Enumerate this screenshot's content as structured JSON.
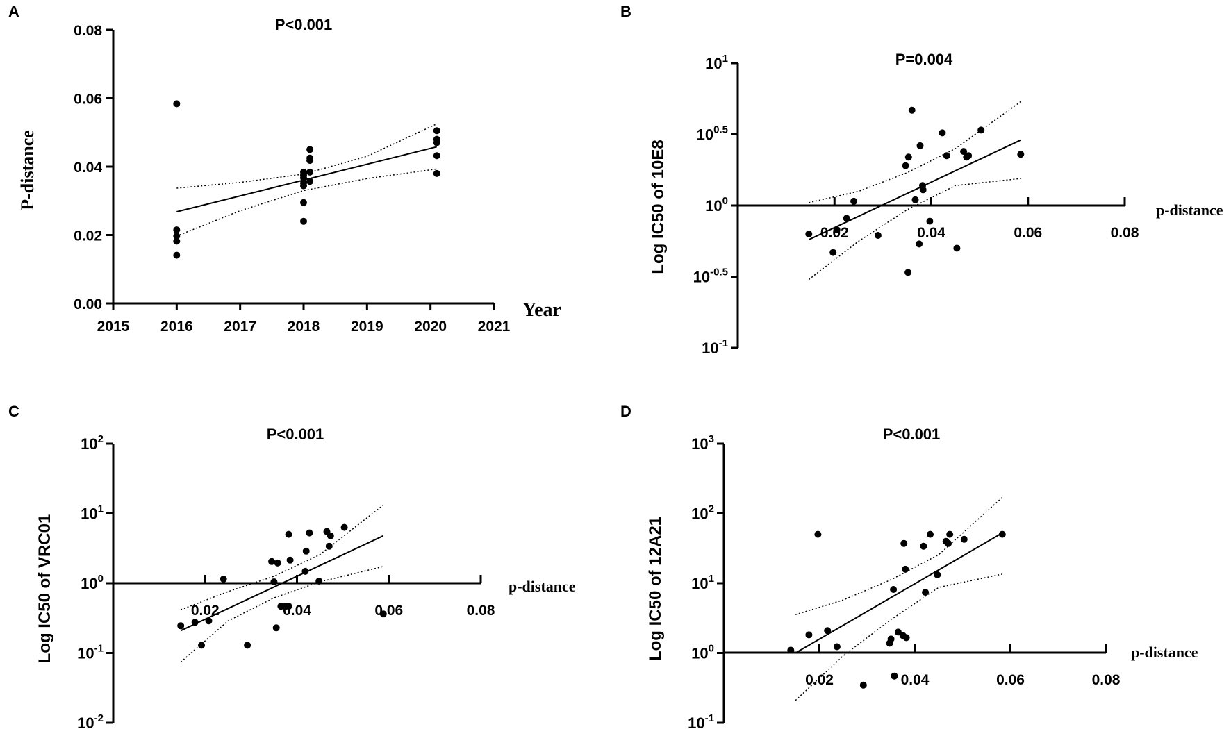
{
  "figure": {
    "panels": [
      "A",
      "B",
      "C",
      "D"
    ]
  },
  "chart_data": [
    {
      "panel": "A",
      "type": "scatter",
      "title": "P<0.001",
      "xlabel": "Year",
      "ylabel": "P-distance",
      "xscale": "linear",
      "yscale": "linear",
      "xlim": [
        2015,
        2021
      ],
      "ylim": [
        0.0,
        0.08
      ],
      "xticks": [
        2015,
        2016,
        2017,
        2018,
        2019,
        2020,
        2021
      ],
      "xtick_labels": [
        "2015",
        "2016",
        "2017",
        "2018",
        "2019",
        "2020",
        "2021"
      ],
      "yticks": [
        0.0,
        0.02,
        0.04,
        0.06,
        0.08
      ],
      "ytick_labels": [
        "0.00",
        "0.02",
        "0.04",
        "0.06",
        "0.08"
      ],
      "x": [
        2016,
        2016,
        2016,
        2016,
        2016,
        2018,
        2018,
        2018,
        2018,
        2018,
        2018,
        2018,
        2018.1,
        2018.1,
        2018.1,
        2018.1,
        2018.1,
        2020.1,
        2020.1,
        2020.1,
        2020.1,
        2020.1
      ],
      "y": [
        0.0584,
        0.0215,
        0.0197,
        0.0182,
        0.0141,
        0.0384,
        0.0375,
        0.0367,
        0.0352,
        0.0344,
        0.0295,
        0.024,
        0.045,
        0.0425,
        0.0418,
        0.0384,
        0.0357,
        0.0505,
        0.048,
        0.047,
        0.0432,
        0.038
      ],
      "fit": {
        "x": [
          2016,
          2020.1
        ],
        "y": [
          0.0268,
          0.0458
        ]
      },
      "ci_upper": {
        "x": [
          2016,
          2017,
          2018,
          2019,
          2020.1
        ],
        "y": [
          0.0337,
          0.0354,
          0.0378,
          0.043,
          0.0525
        ]
      },
      "ci_lower": {
        "x": [
          2016,
          2017,
          2018,
          2019,
          2020.1
        ],
        "y": [
          0.0197,
          0.0271,
          0.033,
          0.0365,
          0.0393
        ]
      }
    },
    {
      "panel": "B",
      "type": "scatter",
      "title": "P=0.004",
      "xlabel": "p-distance",
      "ylabel": "Log IC50 of 10E8",
      "xscale": "linear",
      "yscale": "log",
      "xlim": [
        0.0,
        0.08
      ],
      "ylim_exp": [
        -1,
        1
      ],
      "xticks": [
        0.02,
        0.04,
        0.06,
        0.08
      ],
      "xtick_labels": [
        "0.02",
        "0.04",
        "0.06",
        "0.08"
      ],
      "ytick_exps": [
        1,
        0.5,
        0,
        -0.5,
        -1
      ],
      "ytick_base": "10",
      "ytick_sup": [
        "1",
        "0.5",
        "0",
        "-0.5",
        "-1"
      ],
      "x": [
        0.0147,
        0.0205,
        0.0225,
        0.024,
        0.0197,
        0.029,
        0.0347,
        0.0353,
        0.036,
        0.0367,
        0.0377,
        0.0382,
        0.0383,
        0.0375,
        0.0352,
        0.0397,
        0.0423,
        0.0432,
        0.0453,
        0.0467,
        0.0473,
        0.0477,
        0.0503,
        0.0585
      ],
      "y_exp": [
        -0.2,
        -0.17,
        -0.09,
        0.03,
        -0.33,
        -0.21,
        0.28,
        0.34,
        0.67,
        0.04,
        0.42,
        0.14,
        0.11,
        -0.27,
        -0.47,
        -0.11,
        0.51,
        0.35,
        -0.3,
        0.38,
        0.34,
        0.35,
        0.53,
        0.36
      ],
      "fit": {
        "x": [
          0.0147,
          0.0585
        ],
        "y_exp": [
          -0.24,
          0.46
        ]
      },
      "ci_upper": {
        "x": [
          0.0147,
          0.025,
          0.035,
          0.045,
          0.0585
        ],
        "y_exp": [
          0.02,
          0.1,
          0.23,
          0.4,
          0.73
        ]
      },
      "ci_lower": {
        "x": [
          0.0147,
          0.025,
          0.035,
          0.045,
          0.0585
        ],
        "y_exp": [
          -0.52,
          -0.25,
          -0.03,
          0.14,
          0.19
        ]
      }
    },
    {
      "panel": "C",
      "type": "scatter",
      "title": "P<0.001",
      "xlabel": "p-distance",
      "ylabel": "Log IC50 of VRC01",
      "xscale": "linear",
      "yscale": "log",
      "xlim": [
        0.0,
        0.08
      ],
      "ylim_exp": [
        -2,
        2
      ],
      "xticks": [
        0.02,
        0.04,
        0.06,
        0.08
      ],
      "xtick_labels": [
        "0.02",
        "0.04",
        "0.06",
        "0.08"
      ],
      "ytick_exps": [
        2,
        1,
        0,
        -1,
        -2
      ],
      "ytick_base": "10",
      "ytick_sup": [
        "2",
        "1",
        "0",
        "-1",
        "-2"
      ],
      "x": [
        0.0147,
        0.0178,
        0.0192,
        0.0208,
        0.024,
        0.0292,
        0.0345,
        0.0355,
        0.0358,
        0.0365,
        0.0375,
        0.0382,
        0.0382,
        0.0385,
        0.0418,
        0.042,
        0.0427,
        0.0448,
        0.0465,
        0.047,
        0.0473,
        0.0503,
        0.0588,
        0.035
      ],
      "y_exp": [
        -0.61,
        -0.56,
        -0.89,
        -0.54,
        0.06,
        -0.89,
        0.31,
        -0.64,
        0.29,
        -0.33,
        -0.33,
        0.7,
        -0.33,
        0.33,
        0.17,
        0.46,
        0.72,
        0.03,
        0.74,
        0.53,
        0.68,
        0.8,
        -0.44,
        0.02
      ],
      "fit": {
        "x": [
          0.0147,
          0.0588
        ],
        "y_exp": [
          -0.68,
          0.68
        ]
      },
      "ci_upper": {
        "x": [
          0.0147,
          0.025,
          0.035,
          0.045,
          0.0588
        ],
        "y_exp": [
          -0.38,
          -0.12,
          0.1,
          0.41,
          1.12
        ]
      },
      "ci_lower": {
        "x": [
          0.0147,
          0.025,
          0.035,
          0.045,
          0.0588
        ],
        "y_exp": [
          -1.13,
          -0.54,
          -0.21,
          0.02,
          0.24
        ]
      }
    },
    {
      "panel": "D",
      "type": "scatter",
      "title": "P<0.001",
      "xlabel": "p-distance",
      "ylabel": "Log IC50 of 12A21",
      "xscale": "linear",
      "yscale": "log",
      "xlim": [
        0.0,
        0.08
      ],
      "ylim_exp": [
        -1,
        3
      ],
      "xticks": [
        0.02,
        0.04,
        0.06,
        0.08
      ],
      "xtick_labels": [
        "0.02",
        "0.04",
        "0.06",
        "0.08"
      ],
      "ytick_exps": [
        3,
        2,
        1,
        0,
        -1
      ],
      "ytick_base": "10",
      "ytick_sup": [
        "3",
        "2",
        "1",
        "0",
        "-1"
      ],
      "x": [
        0.014,
        0.0178,
        0.0197,
        0.0217,
        0.0237,
        0.0292,
        0.0347,
        0.035,
        0.0355,
        0.0357,
        0.0365,
        0.0377,
        0.0375,
        0.038,
        0.0382,
        0.0418,
        0.0422,
        0.0432,
        0.0447,
        0.0465,
        0.047,
        0.0473,
        0.0503,
        0.0583
      ],
      "y_exp": [
        0.04,
        0.26,
        1.7,
        0.32,
        0.09,
        -0.46,
        0.14,
        0.2,
        0.91,
        -0.33,
        0.3,
        1.57,
        0.25,
        1.2,
        0.22,
        1.53,
        0.87,
        1.7,
        1.12,
        1.6,
        1.57,
        1.7,
        1.63,
        1.7
      ],
      "fit": {
        "x": [
          0.015,
          0.0583
        ],
        "y_exp": [
          0.0,
          1.72
        ]
      },
      "ci_upper": {
        "x": [
          0.015,
          0.025,
          0.035,
          0.045,
          0.0583
        ],
        "y_exp": [
          0.55,
          0.76,
          1.05,
          1.41,
          2.23
        ]
      },
      "ci_lower": {
        "x": [
          0.015,
          0.025,
          0.035,
          0.045,
          0.0583
        ],
        "y_exp": [
          -0.68,
          -0.04,
          0.48,
          0.94,
          1.13
        ]
      }
    }
  ]
}
